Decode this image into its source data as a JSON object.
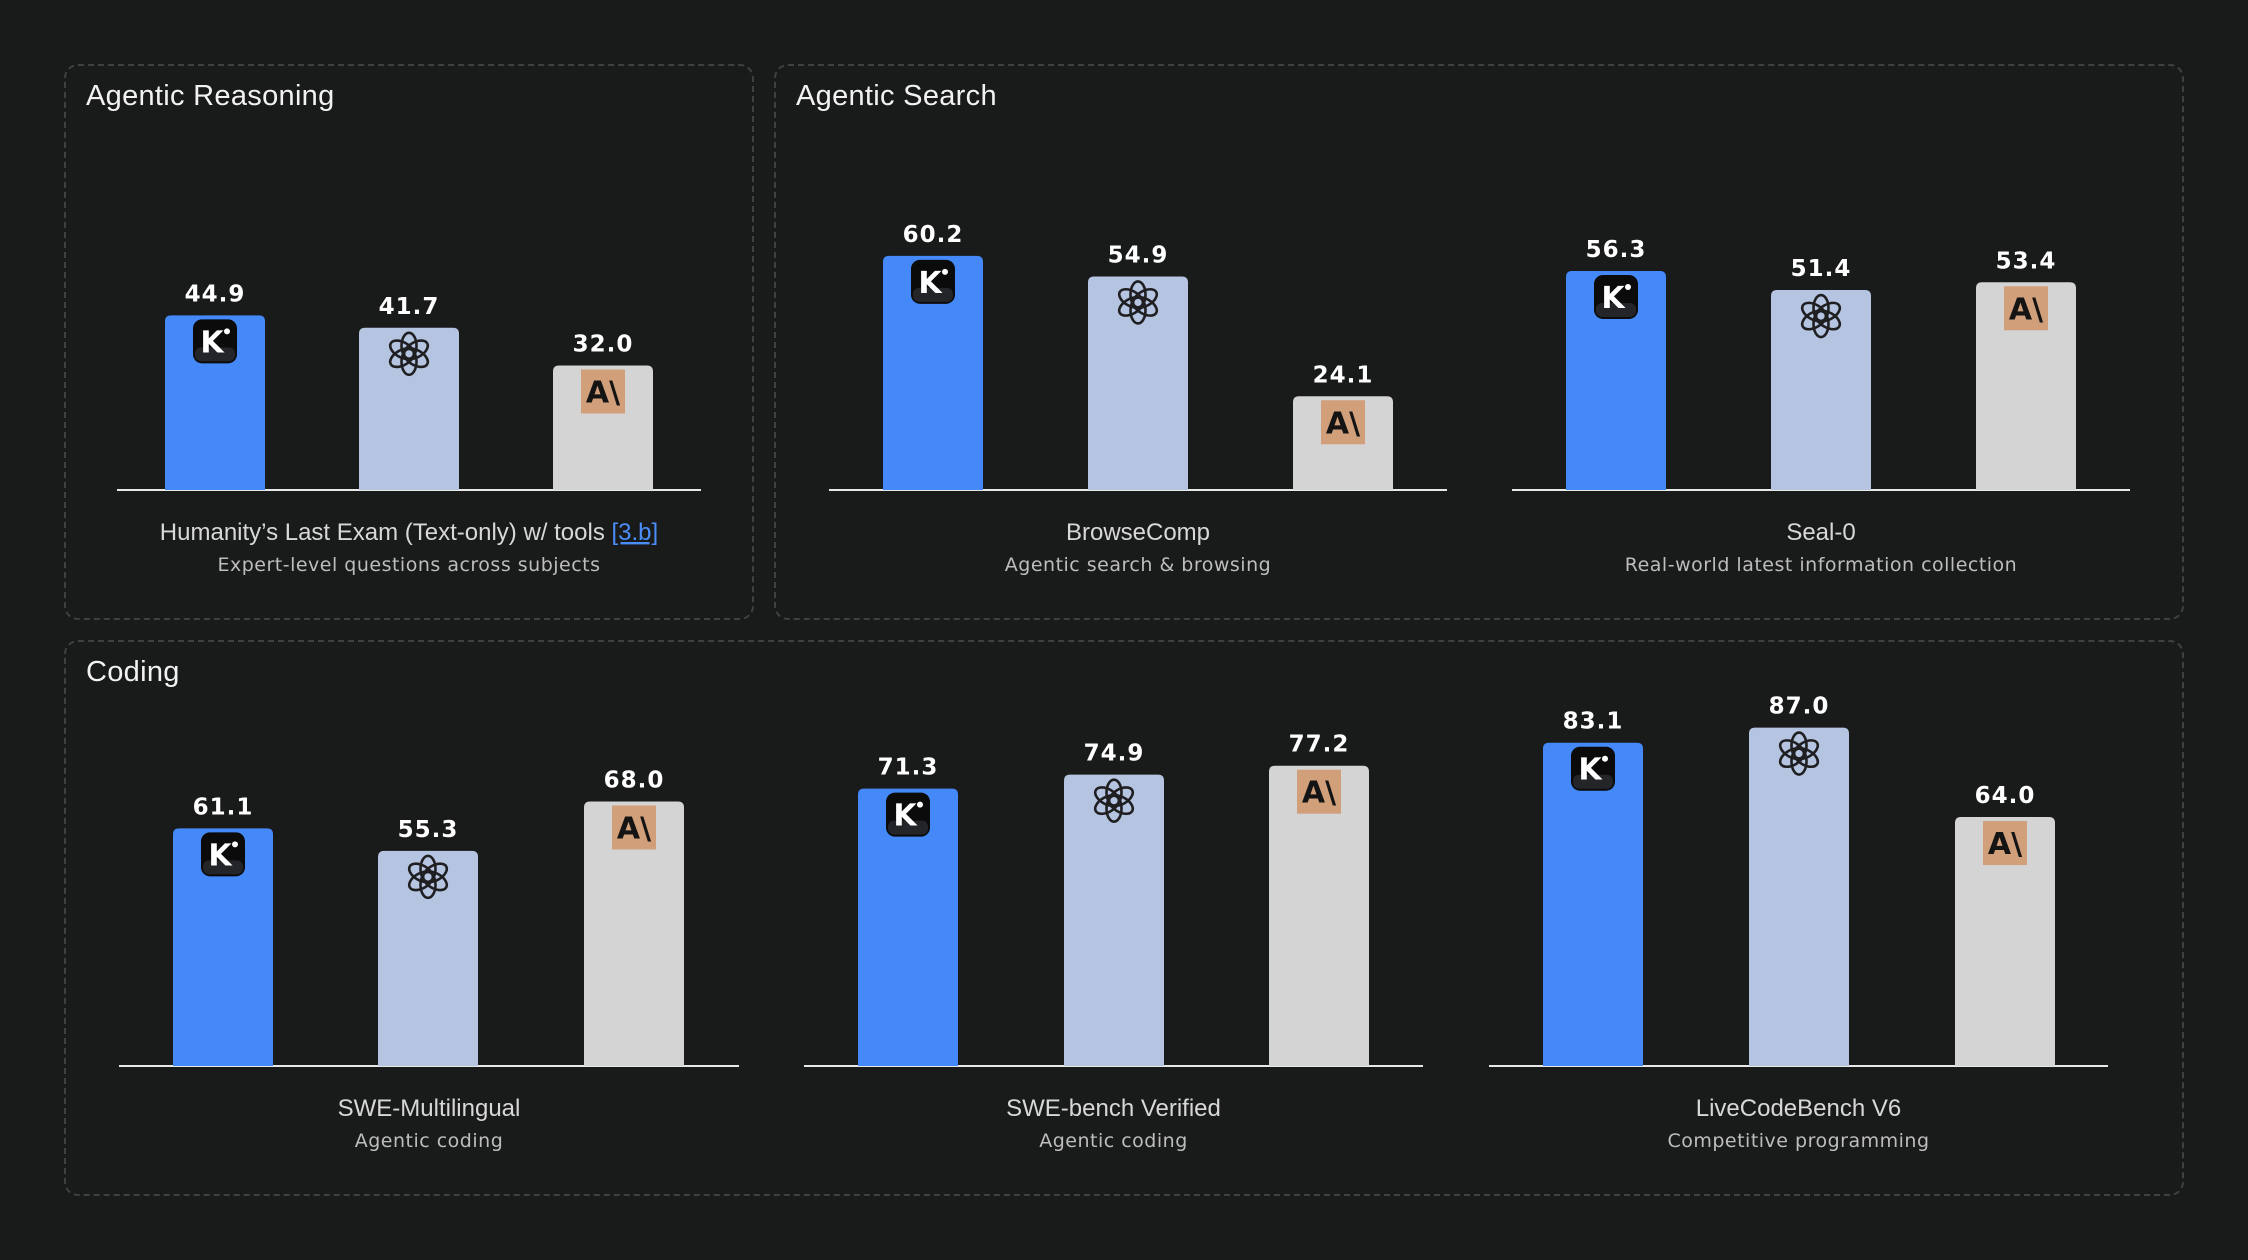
{
  "colors": {
    "kimi": "#4489f7",
    "openai": "#b5c4e0",
    "anthropic": "#d4d4d4",
    "anthropic_badge": "#d19f7a",
    "background": "#191a1a",
    "link": "#4b8df8"
  },
  "model_icons": [
    "kimi-logo-icon",
    "openai-logo-icon",
    "anthropic-logo-icon"
  ],
  "panels": [
    {
      "title": "Agentic Reasoning"
    },
    {
      "title": "Agentic Search"
    },
    {
      "title": "Coding"
    }
  ],
  "chart_data": [
    {
      "type": "bar",
      "panel": "Agentic Reasoning",
      "title": "Humanity’s Last Exam (Text-only) w/ tools",
      "title_ref": "[3.b]",
      "subtitle": "Expert-level questions across subjects",
      "categories": [
        "kimi",
        "openai",
        "anthropic"
      ],
      "values": [
        44.9,
        41.7,
        32.0
      ],
      "labels": [
        "44.9",
        "41.7",
        "32.0"
      ],
      "ylim": [
        0,
        100
      ]
    },
    {
      "type": "bar",
      "panel": "Agentic Search",
      "title": "BrowseComp",
      "subtitle": "Agentic search & browsing",
      "categories": [
        "kimi",
        "openai",
        "anthropic"
      ],
      "values": [
        60.2,
        54.9,
        24.1
      ],
      "labels": [
        "60.2",
        "54.9",
        "24.1"
      ],
      "ylim": [
        0,
        100
      ]
    },
    {
      "type": "bar",
      "panel": "Agentic Search",
      "title": "Seal-0",
      "subtitle": "Real-world latest information collection",
      "categories": [
        "kimi",
        "openai",
        "anthropic"
      ],
      "values": [
        56.3,
        51.4,
        53.4
      ],
      "labels": [
        "56.3",
        "51.4",
        "53.4"
      ],
      "ylim": [
        0,
        100
      ]
    },
    {
      "type": "bar",
      "panel": "Coding",
      "title": "SWE-Multilingual",
      "subtitle": "Agentic coding",
      "categories": [
        "kimi",
        "openai",
        "anthropic"
      ],
      "values": [
        61.1,
        55.3,
        68.0
      ],
      "labels": [
        "61.1",
        "55.3",
        "68.0"
      ],
      "ylim": [
        0,
        100
      ]
    },
    {
      "type": "bar",
      "panel": "Coding",
      "title": "SWE-bench Verified",
      "subtitle": "Agentic coding",
      "categories": [
        "kimi",
        "openai",
        "anthropic"
      ],
      "values": [
        71.3,
        74.9,
        77.2
      ],
      "labels": [
        "71.3",
        "74.9",
        "77.2"
      ],
      "ylim": [
        0,
        100
      ]
    },
    {
      "type": "bar",
      "panel": "Coding",
      "title": "LiveCodeBench V6",
      "subtitle": "Competitive programming",
      "categories": [
        "kimi",
        "openai",
        "anthropic"
      ],
      "values": [
        83.1,
        87.0,
        64.0
      ],
      "labels": [
        "83.1",
        "87.0",
        "64.0"
      ],
      "ylim": [
        0,
        100
      ]
    }
  ]
}
